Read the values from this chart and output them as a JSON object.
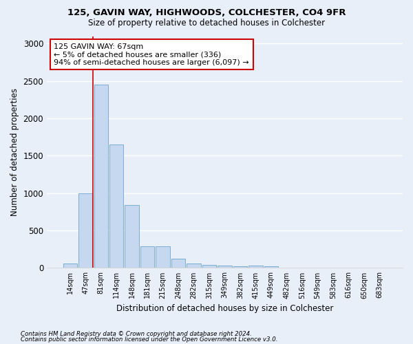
{
  "title1": "125, GAVIN WAY, HIGHWOODS, COLCHESTER, CO4 9FR",
  "title2": "Size of property relative to detached houses in Colchester",
  "xlabel": "Distribution of detached houses by size in Colchester",
  "ylabel": "Number of detached properties",
  "categories": [
    "14sqm",
    "47sqm",
    "81sqm",
    "114sqm",
    "148sqm",
    "181sqm",
    "215sqm",
    "248sqm",
    "282sqm",
    "315sqm",
    "349sqm",
    "382sqm",
    "415sqm",
    "449sqm",
    "482sqm",
    "516sqm",
    "549sqm",
    "583sqm",
    "616sqm",
    "650sqm",
    "683sqm"
  ],
  "values": [
    55,
    1000,
    2450,
    1650,
    840,
    285,
    285,
    120,
    55,
    40,
    30,
    20,
    30,
    20,
    0,
    0,
    0,
    0,
    0,
    0,
    0
  ],
  "bar_color": "#c5d8f0",
  "bar_edge_color": "#7aadd4",
  "background_color": "#e8eff8",
  "annotation_text": "125 GAVIN WAY: 67sqm\n← 5% of detached houses are smaller (336)\n94% of semi-detached houses are larger (6,097) →",
  "annotation_box_color": "#ffffff",
  "annotation_box_edge": "#cc0000",
  "redline_x": 1.5,
  "ylim": [
    0,
    3100
  ],
  "yticks": [
    0,
    500,
    1000,
    1500,
    2000,
    2500,
    3000
  ],
  "footnote1": "Contains HM Land Registry data © Crown copyright and database right 2024.",
  "footnote2": "Contains public sector information licensed under the Open Government Licence v3.0."
}
